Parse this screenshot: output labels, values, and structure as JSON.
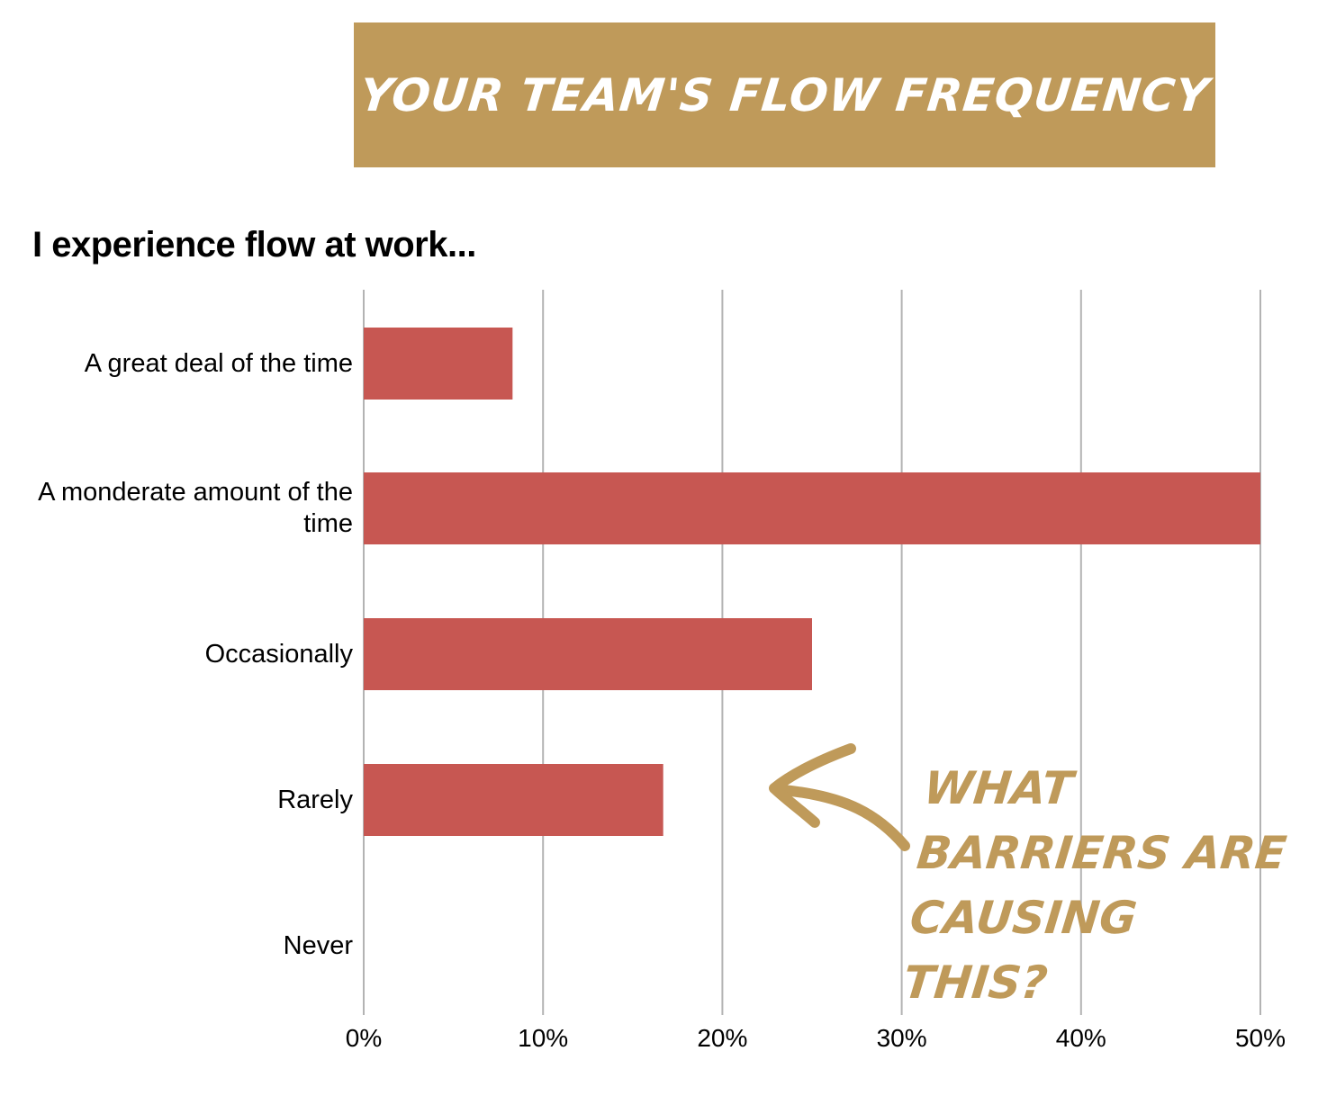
{
  "banner": {
    "title": "Your team's flow frequency"
  },
  "colors": {
    "banner": "#BF9A5A",
    "bar": "#C75752",
    "grid": "#B3B3B3",
    "annotation": "#BF9A5A"
  },
  "chart_data": {
    "type": "bar",
    "orientation": "horizontal",
    "title": "I experience flow at work...",
    "categories": [
      "A great deal of the time",
      "A monderate amount of the time",
      "Occasionally",
      "Rarely",
      "Never"
    ],
    "values": [
      8.3,
      50,
      25,
      16.7,
      0
    ],
    "xlim": [
      0,
      50
    ],
    "xticks": [
      "0%",
      "10%",
      "20%",
      "30%",
      "40%",
      "50%"
    ],
    "grid": true,
    "legend": "none"
  },
  "annotation": {
    "text": "What barriers are causing this?",
    "icon": "curved-arrow-icon"
  }
}
